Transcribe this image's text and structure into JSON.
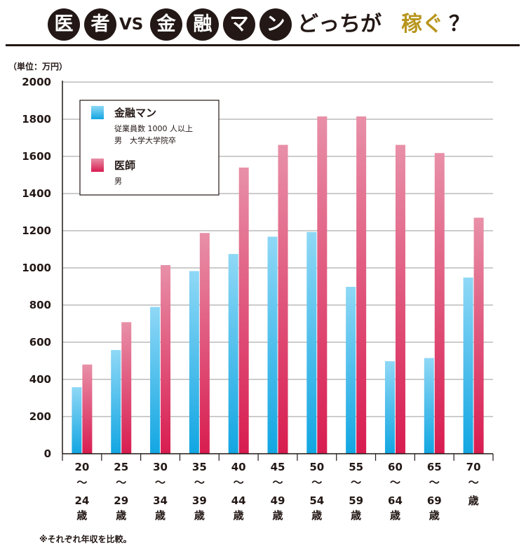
{
  "header": {
    "circle_chars": [
      "医",
      "者",
      "金",
      "融",
      "マ",
      "ン"
    ],
    "vs": "VS",
    "tail": "どっちが",
    "accent": "稼ぐ",
    "question": "？"
  },
  "unit_label": "（単位：万円）",
  "footnote": "※それぞれ年収を比較。",
  "colors": {
    "finance_top": "#8fd8f6",
    "finance_bottom": "#12a6e2",
    "doctor_top": "#e890a8",
    "doctor_bottom": "#d81c50",
    "grid": "#9a9a9a",
    "axis": "#231815",
    "accent": "#b8961e"
  },
  "chart_data": {
    "type": "bar",
    "title": "医者VS金融マン どっちが稼ぐ？",
    "ylabel": "（単位：万円）",
    "xlabel": "",
    "ylim": [
      0,
      2000
    ],
    "yticks": [
      0,
      200,
      400,
      600,
      800,
      1000,
      1200,
      1400,
      1600,
      1800,
      2000
    ],
    "grid": true,
    "legend_position": "top-left",
    "categories": [
      [
        "20",
        "〜",
        "24",
        "歳"
      ],
      [
        "25",
        "〜",
        "29",
        "歳"
      ],
      [
        "30",
        "〜",
        "34",
        "歳"
      ],
      [
        "35",
        "〜",
        "39",
        "歳"
      ],
      [
        "40",
        "〜",
        "44",
        "歳"
      ],
      [
        "45",
        "〜",
        "49",
        "歳"
      ],
      [
        "50",
        "〜",
        "54",
        "歳"
      ],
      [
        "55",
        "〜",
        "59",
        "歳"
      ],
      [
        "60",
        "〜",
        "64",
        "歳"
      ],
      [
        "65",
        "〜",
        "69",
        "歳"
      ],
      [
        "70",
        "〜",
        "歳"
      ]
    ],
    "series": [
      {
        "name": "金融マン",
        "sublabels": [
          "従業員数 1000 人以上",
          "男　大学大学院卒"
        ],
        "values": [
          358,
          558,
          790,
          983,
          1075,
          1168,
          1193,
          898,
          498,
          515,
          948
        ]
      },
      {
        "name": "医師",
        "sublabels": [
          "男"
        ],
        "values": [
          480,
          708,
          1015,
          1188,
          1540,
          1662,
          1815,
          1815,
          1662,
          1618,
          1270
        ]
      }
    ]
  }
}
